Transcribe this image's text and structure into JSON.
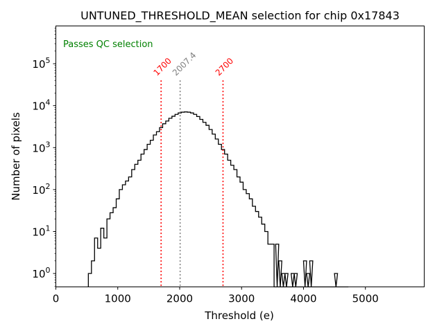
{
  "chart_data": {
    "type": "histogram",
    "title": "UNTUNED_THRESHOLD_MEAN selection for chip 0x17843",
    "xlabel": "Threshold (e)",
    "ylabel": "Number of pixels",
    "xlim": [
      0,
      5950
    ],
    "ylim_log10": [
      -0.32,
      5.9
    ],
    "yscale": "log",
    "grid": false,
    "x_ticks": [
      0,
      1000,
      2000,
      3000,
      4000,
      5000
    ],
    "x_tick_labels": [
      "0",
      "1000",
      "2000",
      "3000",
      "4000",
      "5000"
    ],
    "y_ticks_exp": [
      0,
      1,
      2,
      3,
      4,
      5
    ],
    "y_tick_base": "10",
    "bin_width": 50,
    "bin_start": 525,
    "counts": [
      1,
      2,
      7,
      4,
      12,
      7,
      20,
      28,
      37,
      60,
      100,
      130,
      160,
      200,
      300,
      400,
      500,
      700,
      900,
      1200,
      1500,
      2000,
      2400,
      3000,
      3700,
      4300,
      5000,
      5600,
      6200,
      6700,
      7000,
      7100,
      7000,
      6700,
      6200,
      5500,
      4700,
      4000,
      3400,
      2700,
      2100,
      1600,
      1200,
      900,
      700,
      500,
      380,
      300,
      200,
      150,
      100,
      80,
      60,
      40,
      30,
      22,
      15,
      10,
      5,
      5,
      1,
      0,
      0,
      0.3,
      0,
      0,
      0,
      0.3,
      0,
      0,
      0,
      0,
      0,
      0,
      0,
      0,
      0,
      0,
      0,
      0,
      0,
      0,
      0
    ],
    "counts_tail_explicit": [
      {
        "x": 3550,
        "count": 5
      },
      {
        "x": 3600,
        "count": 2
      },
      {
        "x": 3650,
        "count": 1
      },
      {
        "x": 3700,
        "count": 1
      },
      {
        "x": 3800,
        "count": 1
      },
      {
        "x": 3850,
        "count": 1
      },
      {
        "x": 4000,
        "count": 2
      },
      {
        "x": 4050,
        "count": 1
      },
      {
        "x": 4100,
        "count": 2
      },
      {
        "x": 4500,
        "count": 1
      }
    ],
    "vlines": [
      {
        "x": 1700,
        "label": "1700",
        "color": "#ff0000",
        "style": "dotted"
      },
      {
        "x": 2007.4,
        "label": "2007.4",
        "color": "#808080",
        "style": "dotted"
      },
      {
        "x": 2700,
        "label": "2700",
        "color": "#ff0000",
        "style": "dotted"
      }
    ],
    "annotation": {
      "text": "Passes QC selection",
      "color": "#008000",
      "position": "top-left"
    },
    "line_color": "#000000"
  }
}
